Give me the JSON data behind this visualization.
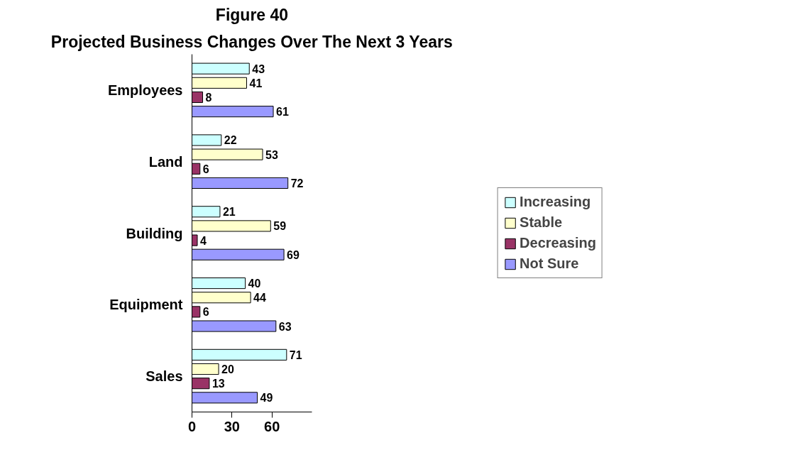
{
  "chart_data": {
    "type": "bar",
    "orientation": "horizontal",
    "title": "Figure 40",
    "subtitle": "Projected Business Changes Over The Next 3 Years",
    "categories": [
      "Employees",
      "Land",
      "Building",
      "Equipment",
      "Sales"
    ],
    "series": [
      {
        "name": "Increasing",
        "color": "#ccffff",
        "values": [
          43,
          22,
          21,
          40,
          71
        ]
      },
      {
        "name": "Stable",
        "color": "#ffffcc",
        "values": [
          41,
          53,
          59,
          44,
          20
        ]
      },
      {
        "name": "Decreasing",
        "color": "#993366",
        "values": [
          8,
          6,
          4,
          6,
          13
        ]
      },
      {
        "name": "Not Sure",
        "color": "#9999ff",
        "values": [
          61,
          72,
          69,
          63,
          49
        ]
      }
    ],
    "xlim": [
      0,
      90
    ],
    "xticks": [
      0,
      30,
      60
    ],
    "data_labels": true,
    "legend": "right",
    "grid": false
  }
}
